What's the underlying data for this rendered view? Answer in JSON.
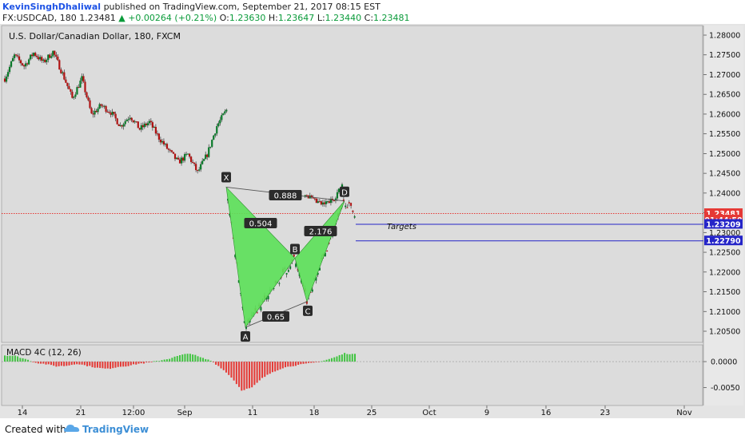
{
  "header": {
    "author": "KevinSinghDhaliwal",
    "published_text": "published on TradingView.com, September 21, 2017 08:15 EST",
    "symbol": "FX:USDCAD, 180",
    "last": "1.23481",
    "change": "▲ +0.00264 (+0.21%)",
    "o_label": "O:",
    "o_value": "1.23630",
    "h_label": "H:",
    "h_value": "1.23647",
    "l_label": "L:",
    "l_value": "1.23440",
    "c_label": "C:",
    "c_value": "1.23481"
  },
  "footer": {
    "created_with": "Created with",
    "brand": "TradingView"
  },
  "colors": {
    "up": "#0a7a2a",
    "down": "#b01212",
    "pattern_fill": "#5de05a",
    "target_line": "#2525c8",
    "price_line": "#e53935",
    "macd_pos": "#3fc43f",
    "macd_neg": "#e53935"
  },
  "chart_data": [
    {
      "type": "candlestick",
      "title": "U.S. Dollar/Canadian Dollar, 180, FXCM",
      "x_ticks": [
        "14",
        "21",
        "12:00",
        "Sep",
        "11",
        "18",
        "25",
        "Oct",
        "9",
        "16",
        "23",
        "Nov"
      ],
      "y_ticks": [
        "1.28000",
        "1.27500",
        "1.27000",
        "1.26500",
        "1.26000",
        "1.25500",
        "1.25000",
        "1.24500",
        "1.24000",
        "1.23500",
        "1.23000",
        "1.22500",
        "1.22000",
        "1.21500",
        "1.21000",
        "1.20500"
      ],
      "ylim": [
        1.2003,
        1.2828
      ],
      "close_path": [
        1.269,
        1.2748,
        1.2722,
        1.2755,
        1.2731,
        1.2758,
        1.2702,
        1.264,
        1.269,
        1.2598,
        1.2622,
        1.2605,
        1.257,
        1.2596,
        1.2562,
        1.258,
        1.254,
        1.2508,
        1.2478,
        1.2498,
        1.2452,
        1.2498,
        1.257,
        1.261,
        1.2652,
        1.2548,
        1.25,
        1.244,
        1.2388,
        1.241,
        1.2395,
        1.2405,
        1.238,
        1.237,
        1.2382,
        1.2418
      ],
      "last_price": "1.23481",
      "price_tags": [
        {
          "label": "1.23481",
          "value": 1.23481
        },
        {
          "label": "01:44:50",
          "value": 1.2332
        },
        {
          "label": "1.23209",
          "value": 1.23209
        },
        {
          "label": "1.22790",
          "value": 1.2279
        }
      ],
      "target_lines": [
        1.23209,
        1.2279
      ],
      "targets_label": "Targets",
      "harmonic_pattern": {
        "points": [
          {
            "label": "X",
            "date": "Sep 7",
            "value": 1.2415
          },
          {
            "label": "A",
            "date": "Sep 8",
            "value": 1.206
          },
          {
            "label": "B",
            "date": "Sep 15",
            "value": 1.2235
          },
          {
            "label": "C",
            "date": "Sep 18",
            "value": 1.2125
          },
          {
            "label": "D",
            "date": "Sep 21",
            "value": 1.238
          }
        ],
        "ratios": [
          {
            "leg": "XD",
            "label": "0.888"
          },
          {
            "leg": "XB",
            "label": "0.504"
          },
          {
            "leg": "BD",
            "label": "2.176"
          },
          {
            "leg": "AC",
            "label": "0.65"
          }
        ]
      }
    },
    {
      "type": "histogram",
      "title": "MACD 4C (12, 26)",
      "y_ticks": [
        "0.0000",
        "-0.0050"
      ],
      "ylim": [
        -0.0082,
        0.0028
      ],
      "values": [
        0.0012,
        0.0011,
        0.0005,
        -0.0002,
        -0.0005,
        -0.0009,
        -0.0008,
        -0.0004,
        -0.0008,
        -0.0012,
        -0.0014,
        -0.001,
        -0.0008,
        -0.0004,
        -0.0002,
        0.0002,
        0.0006,
        0.0012,
        0.0016,
        0.0008,
        0.0002,
        -0.0012,
        -0.003,
        -0.0055,
        -0.005,
        -0.0032,
        -0.002,
        -0.0012,
        -0.0008,
        -0.0005,
        -0.0002,
        0.0002,
        0.0008,
        0.0016,
        0.0014
      ]
    }
  ]
}
